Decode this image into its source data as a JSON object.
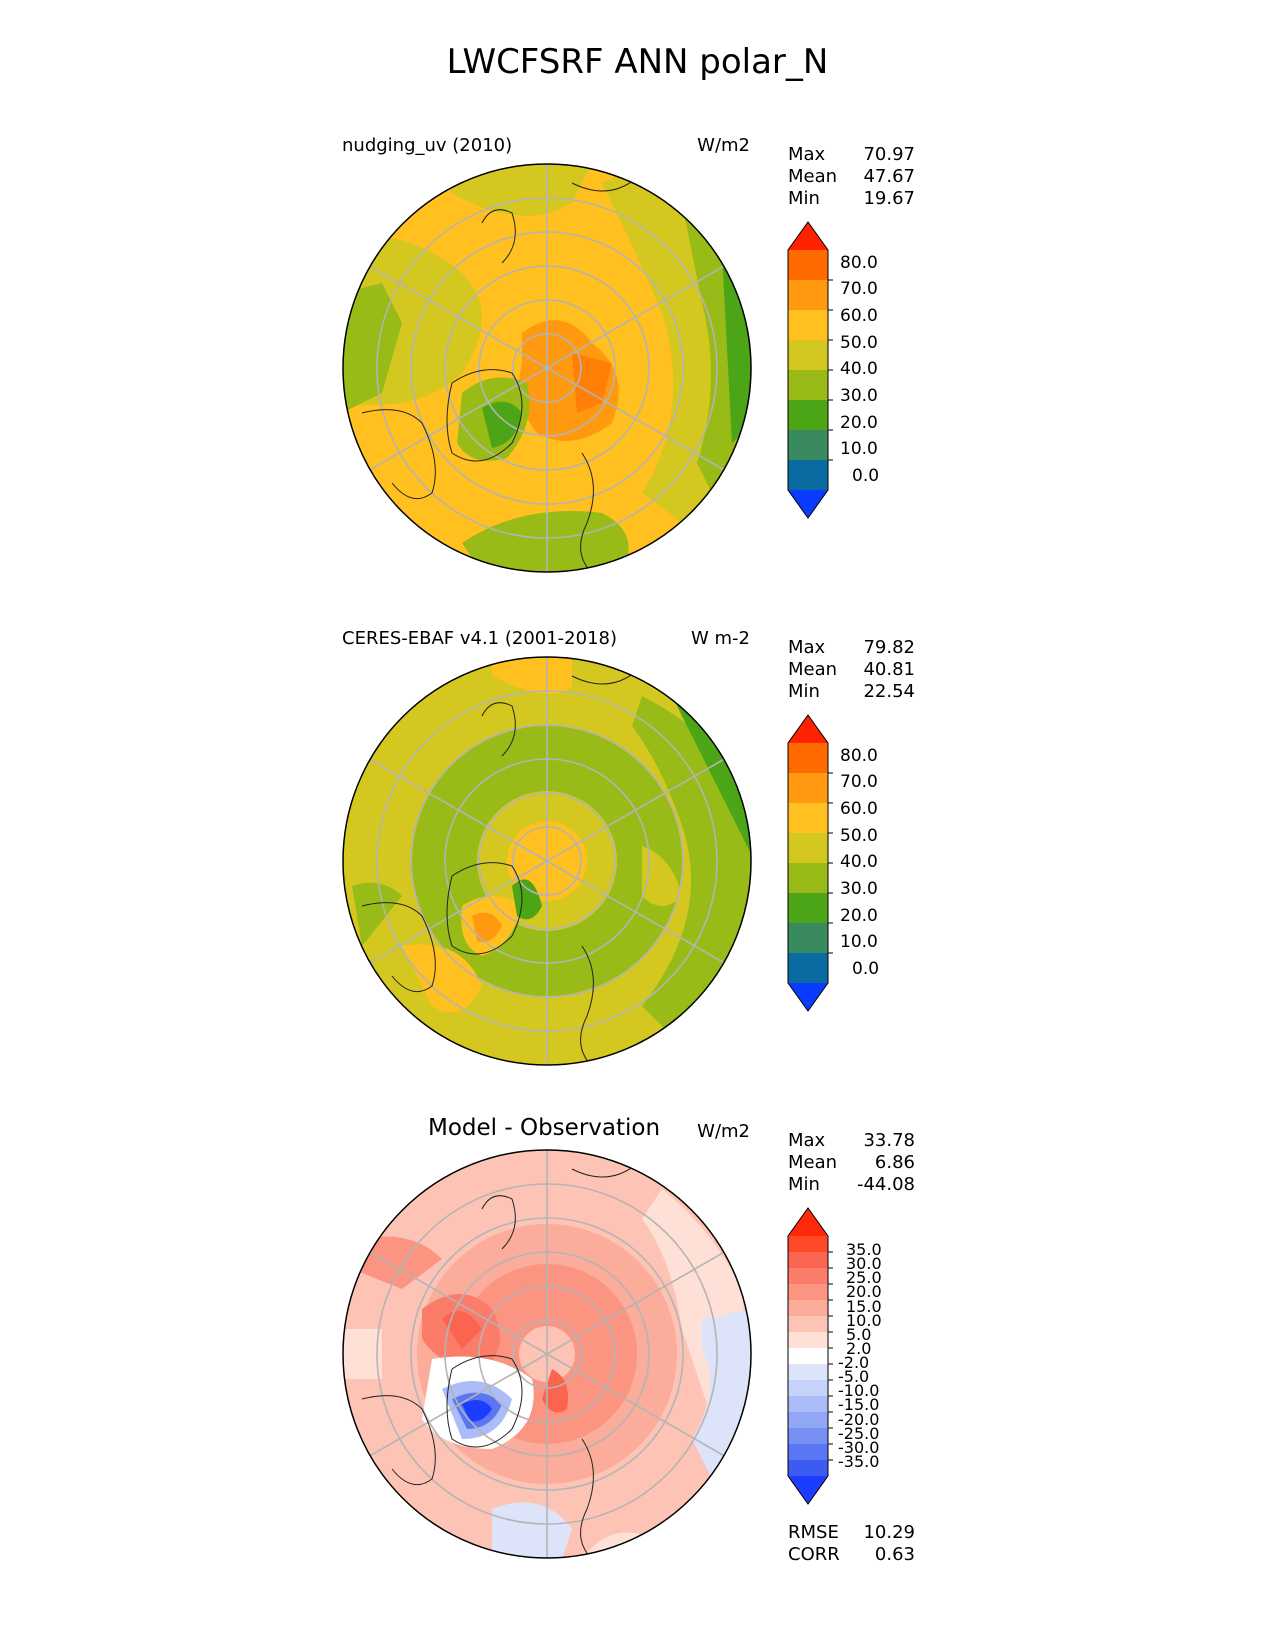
{
  "figure_title": "LWCFSRF ANN polar_N",
  "panels": [
    {
      "id": "test",
      "title": "nudging_uv (2010)",
      "units": "W/m2",
      "stats": [
        {
          "label": "Max",
          "value": "70.97"
        },
        {
          "label": "Mean",
          "value": "47.67"
        },
        {
          "label": "Min",
          "value": "19.67"
        }
      ],
      "colorbar": {
        "ticks": [
          "80.0",
          "70.0",
          "60.0",
          "50.0",
          "40.0",
          "30.0",
          "20.0",
          "10.0",
          "0.0"
        ],
        "colors": [
          "#ff2200",
          "#ff6a00",
          "#ff9a10",
          "#ffc020",
          "#d4c820",
          "#98bb18",
          "#4ca516",
          "#3a8a60",
          "#0a6ba0",
          "#0a3cff"
        ]
      }
    },
    {
      "id": "reference",
      "title": "CERES-EBAF v4.1 (2001-2018)",
      "units": "W m-2",
      "stats": [
        {
          "label": "Max",
          "value": "79.82"
        },
        {
          "label": "Mean",
          "value": "40.81"
        },
        {
          "label": "Min",
          "value": "22.54"
        }
      ],
      "colorbar": {
        "ticks": [
          "80.0",
          "70.0",
          "60.0",
          "50.0",
          "40.0",
          "30.0",
          "20.0",
          "10.0",
          "0.0"
        ],
        "colors": [
          "#ff2200",
          "#ff6a00",
          "#ff9a10",
          "#ffc020",
          "#d4c820",
          "#98bb18",
          "#4ca516",
          "#3a8a60",
          "#0a6ba0",
          "#0a3cff"
        ]
      }
    },
    {
      "id": "diff",
      "title": "Model - Observation",
      "units": "W/m2",
      "stats": [
        {
          "label": "Max",
          "value": "33.78"
        },
        {
          "label": "Mean",
          "value": "6.86"
        },
        {
          "label": "Min",
          "value": "-44.08"
        }
      ],
      "colorbar": {
        "ticks": [
          "35.0",
          "30.0",
          "25.0",
          "20.0",
          "15.0",
          "10.0",
          "5.0",
          "2.0",
          "-2.0",
          "-5.0",
          "-10.0",
          "-15.0",
          "-20.0",
          "-25.0",
          "-30.0",
          "-35.0"
        ],
        "colors": [
          "#ff2a0a",
          "#ff4a2a",
          "#fa6450",
          "#fb7c68",
          "#fb9480",
          "#fcac9a",
          "#fdc4b6",
          "#fee0d6",
          "#ffffff",
          "#dde4fa",
          "#c6d2fa",
          "#acbcf8",
          "#92a6f6",
          "#7890f4",
          "#5a76f2",
          "#3c5cf0",
          "#1c3cff"
        ]
      },
      "metrics": [
        {
          "label": "RMSE",
          "value": "10.29"
        },
        {
          "label": "CORR",
          "value": "0.63"
        }
      ]
    }
  ]
}
